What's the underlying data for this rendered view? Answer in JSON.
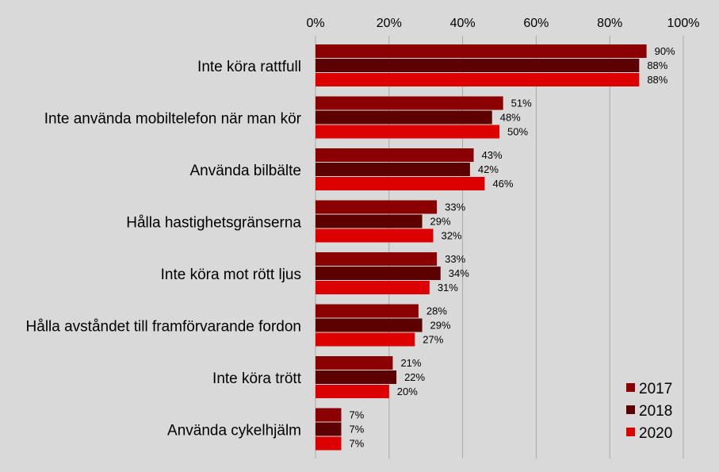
{
  "chart_data": {
    "type": "bar",
    "orientation": "horizontal",
    "categories": [
      "Inte köra rattfull",
      "Inte använda mobiltelefon när man kör",
      "Använda bilbälte",
      "Hålla hastighetsgränserna",
      "Inte köra mot rött ljus",
      "Hålla avståndet till framförvarande fordon",
      "Inte köra trött",
      "Använda cykelhjälm"
    ],
    "series": [
      {
        "name": "2017",
        "color": "#8b0000",
        "values": [
          90,
          51,
          43,
          33,
          33,
          28,
          21,
          7
        ],
        "labels": [
          "90%",
          "51%",
          "43%",
          "33%",
          "33%",
          "28%",
          "21%",
          "7%"
        ]
      },
      {
        "name": "2018",
        "color": "#5c0000",
        "values": [
          88,
          48,
          42,
          29,
          34,
          29,
          22,
          7
        ],
        "labels": [
          "88%",
          "48%",
          "42%",
          "29%",
          "34%",
          "29%",
          "22%",
          "7%"
        ]
      },
      {
        "name": "2020",
        "color": "#dd0000",
        "values": [
          88,
          50,
          46,
          32,
          31,
          27,
          20,
          7
        ],
        "labels": [
          "88%",
          "50%",
          "46%",
          "32%",
          "31%",
          "27%",
          "20%",
          "7%"
        ]
      }
    ],
    "xlim": [
      0,
      100
    ],
    "x_ticks": [
      0,
      20,
      40,
      60,
      80,
      100
    ],
    "x_tick_labels": [
      "0%",
      "20%",
      "40%",
      "60%",
      "80%",
      "100%"
    ],
    "x_axis_position": "top",
    "grid": true,
    "legend_position": "bottom-right"
  }
}
